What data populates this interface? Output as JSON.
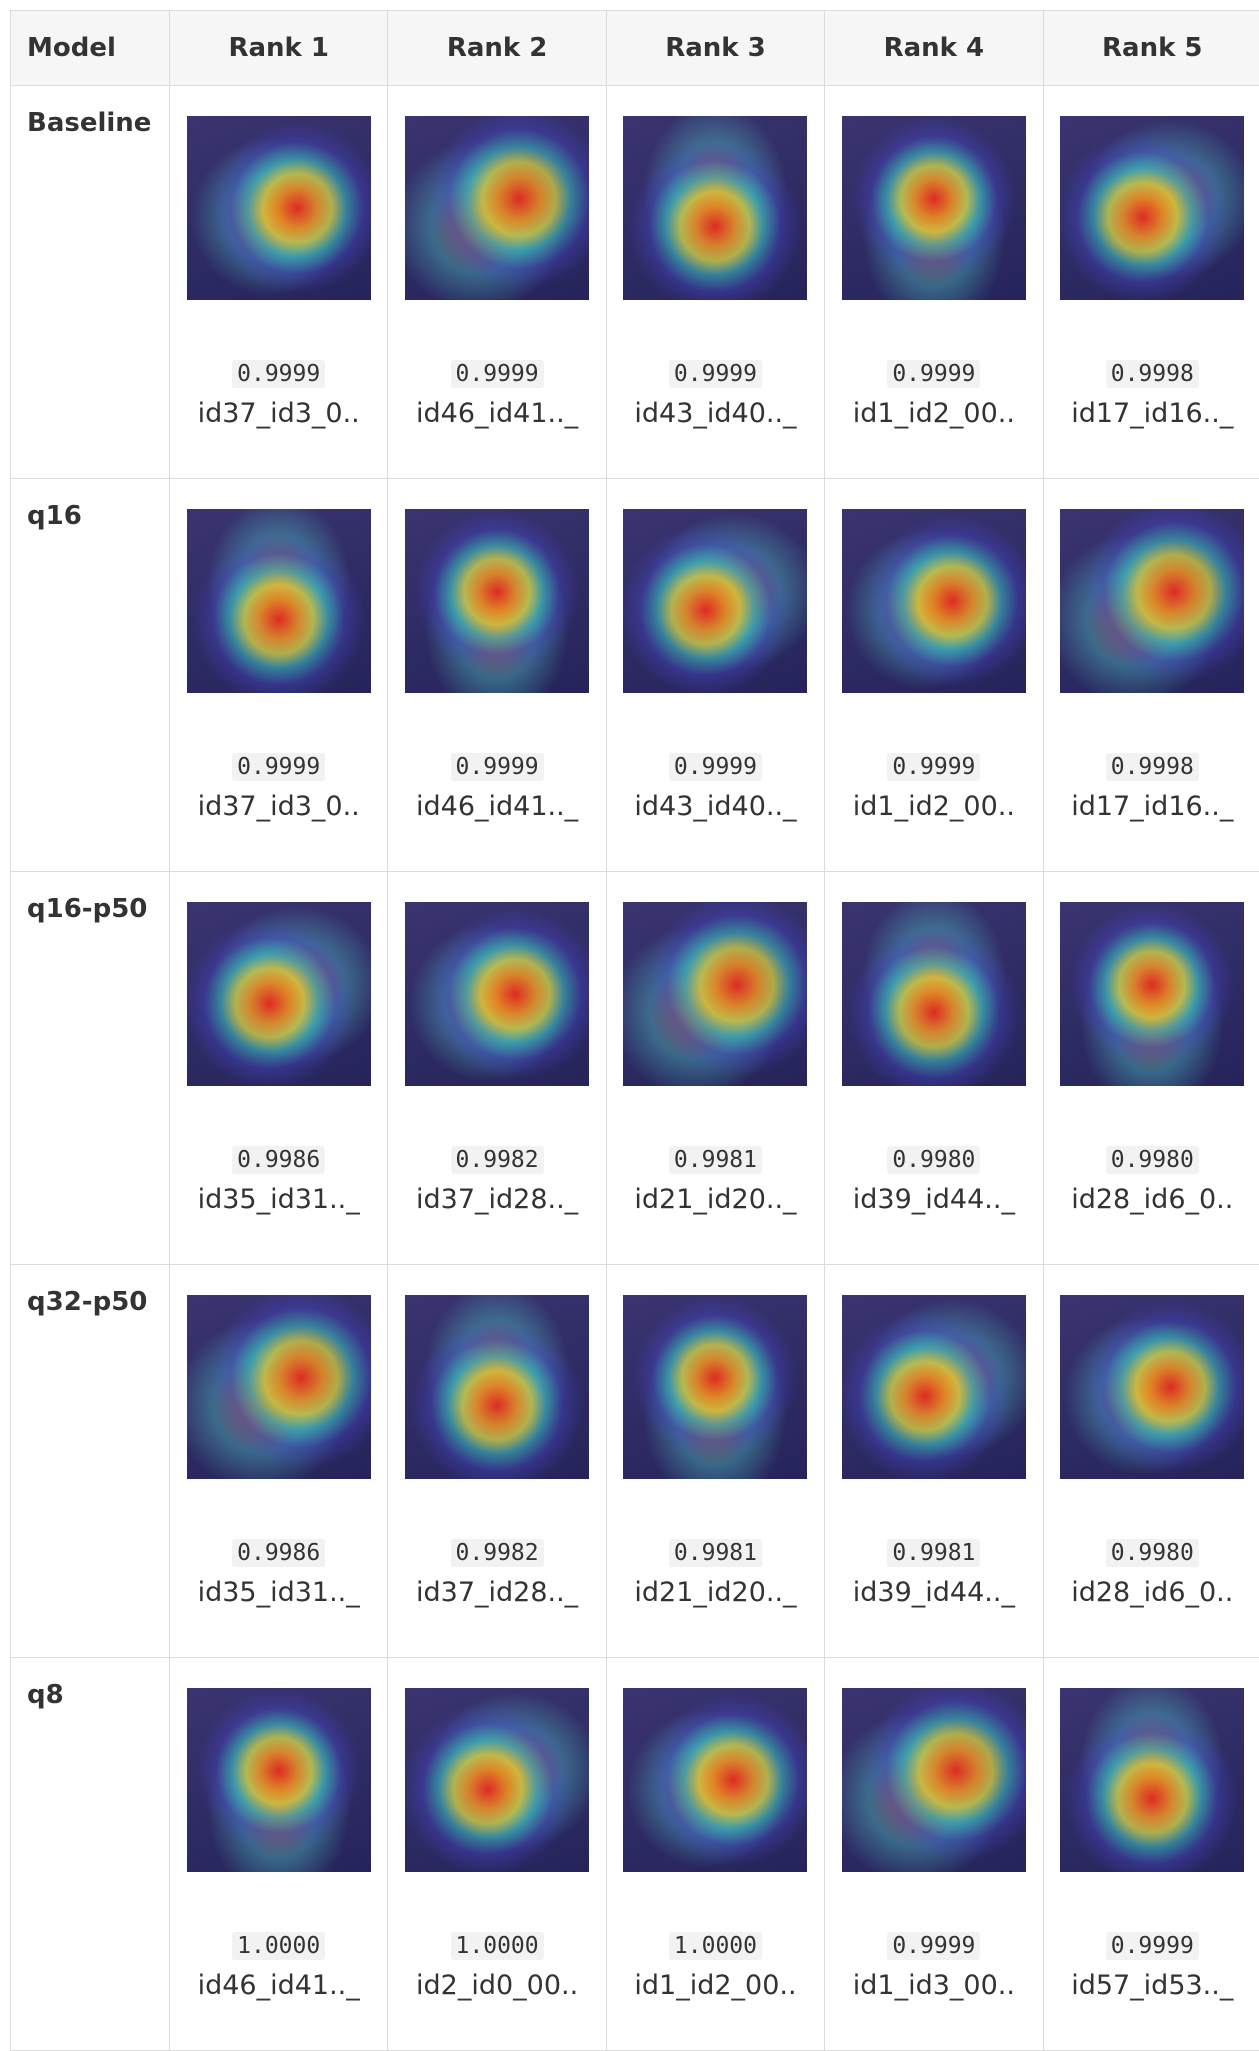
{
  "table": {
    "header": [
      "Model",
      "Rank 1",
      "Rank 2",
      "Rank 3",
      "Rank 4",
      "Rank 5"
    ],
    "rows": [
      {
        "model": "Baseline",
        "cells": [
          {
            "score": "0.9999",
            "name": "id37_id3_0.."
          },
          {
            "score": "0.9999",
            "name": "id46_id41.._"
          },
          {
            "score": "0.9999",
            "name": "id43_id40.._"
          },
          {
            "score": "0.9999",
            "name": "id1_id2_00.."
          },
          {
            "score": "0.9998",
            "name": "id17_id16.._"
          }
        ]
      },
      {
        "model": "q16",
        "cells": [
          {
            "score": "0.9999",
            "name": "id37_id3_0.."
          },
          {
            "score": "0.9999",
            "name": "id46_id41.._"
          },
          {
            "score": "0.9999",
            "name": "id43_id40.._"
          },
          {
            "score": "0.9999",
            "name": "id1_id2_00.."
          },
          {
            "score": "0.9998",
            "name": "id17_id16.._"
          }
        ]
      },
      {
        "model": "q16-p50",
        "cells": [
          {
            "score": "0.9986",
            "name": "id35_id31.._"
          },
          {
            "score": "0.9982",
            "name": "id37_id28.._"
          },
          {
            "score": "0.9981",
            "name": "id21_id20.._"
          },
          {
            "score": "0.9980",
            "name": "id39_id44.._"
          },
          {
            "score": "0.9980",
            "name": "id28_id6_0.."
          }
        ]
      },
      {
        "model": "q32-p50",
        "cells": [
          {
            "score": "0.9986",
            "name": "id35_id31.._"
          },
          {
            "score": "0.9982",
            "name": "id37_id28.._"
          },
          {
            "score": "0.9981",
            "name": "id21_id20.._"
          },
          {
            "score": "0.9981",
            "name": "id39_id44.._"
          },
          {
            "score": "0.9980",
            "name": "id28_id6_0.."
          }
        ]
      },
      {
        "model": "q8",
        "cells": [
          {
            "score": "1.0000",
            "name": "id46_id41.._"
          },
          {
            "score": "1.0000",
            "name": "id2_id0_00.."
          },
          {
            "score": "1.0000",
            "name": "id1_id2_00.."
          },
          {
            "score": "0.9999",
            "name": "id1_id3_00.."
          },
          {
            "score": "0.9999",
            "name": "id57_id53.._"
          }
        ]
      }
    ]
  }
}
